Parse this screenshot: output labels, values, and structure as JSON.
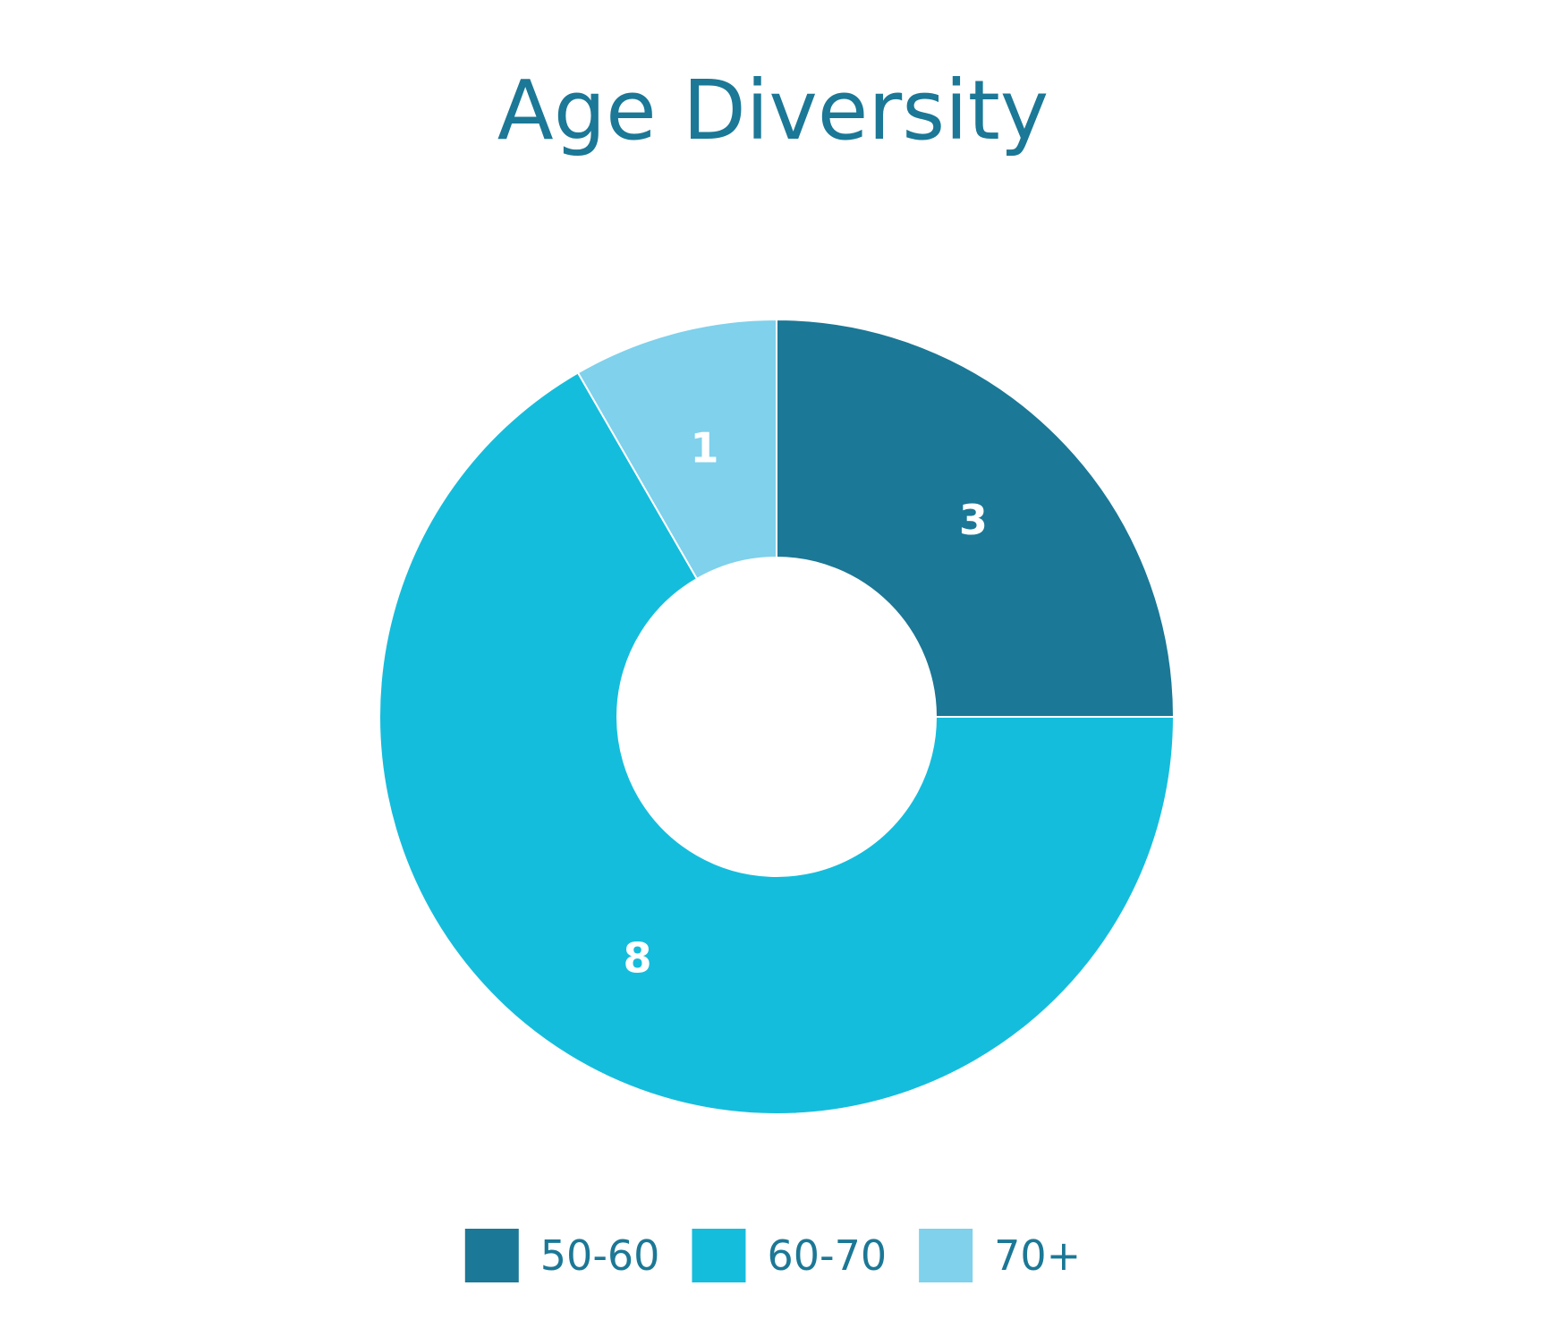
{
  "chart_data": {
    "type": "pie",
    "style": "donut",
    "title": "Age Diversity",
    "categories": [
      "50-60",
      "60-70",
      "70+"
    ],
    "values": [
      3,
      8,
      1
    ],
    "colors": [
      "#1b7896",
      "#15bddc",
      "#7fd1ec"
    ],
    "label_color": "#ffffff",
    "title_color": "#1b7896",
    "legend_text_color": "#1b7896",
    "start": "12 o'clock",
    "direction": "clockwise",
    "legend_placement": "bottom"
  }
}
